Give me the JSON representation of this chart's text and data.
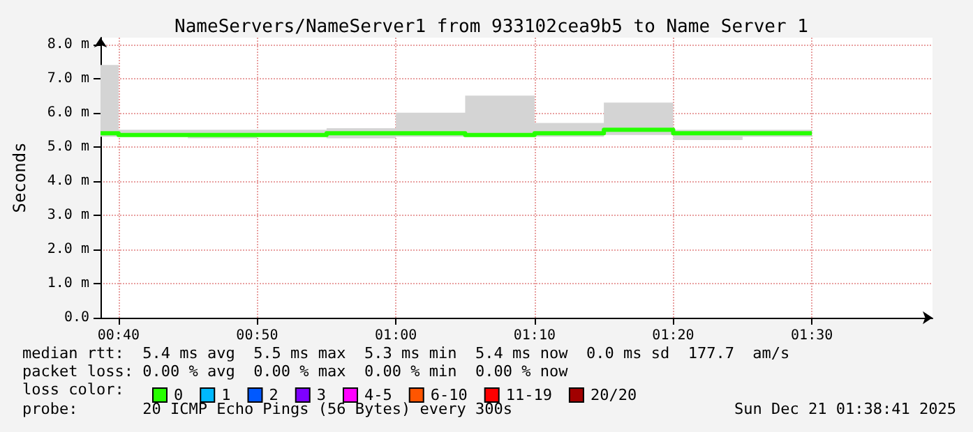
{
  "chart_data": {
    "type": "step",
    "title": "NameServers/NameServer1 from 933102cea9b5 to Name Server 1",
    "ylabel": "Seconds",
    "x": [
      0.645,
      0.6667,
      0.75,
      0.8333,
      0.9167,
      1.0,
      1.0833,
      1.1667,
      1.25,
      1.3333,
      1.4167,
      1.5
    ],
    "xlim": [
      0.645,
      1.645
    ],
    "xticks": [
      {
        "value": 0.6667,
        "label": "00:40"
      },
      {
        "value": 0.8333,
        "label": "00:50"
      },
      {
        "value": 1.0,
        "label": "01:00"
      },
      {
        "value": 1.1667,
        "label": "01:10"
      },
      {
        "value": 1.3333,
        "label": "01:20"
      },
      {
        "value": 1.5,
        "label": "01:30"
      }
    ],
    "ylim": [
      0,
      8.2
    ],
    "yticks": [
      {
        "value": 0,
        "label": "0.0"
      },
      {
        "value": 1,
        "label": "1.0 m"
      },
      {
        "value": 2,
        "label": "2.0 m"
      },
      {
        "value": 3,
        "label": "3.0 m"
      },
      {
        "value": 4,
        "label": "4.0 m"
      },
      {
        "value": 5,
        "label": "5.0 m"
      },
      {
        "value": 6,
        "label": "6.0 m"
      },
      {
        "value": 7,
        "label": "7.0 m"
      },
      {
        "value": 8,
        "label": "8.0 m"
      }
    ],
    "series": [
      {
        "name": "0",
        "color": "#26ff00",
        "values": [
          5.4,
          5.4,
          5.35,
          5.35,
          5.35,
          5.4,
          5.4,
          5.35,
          5.4,
          5.5,
          5.4,
          5.4
        ],
        "lower": [
          5.3,
          5.3,
          5.3,
          5.25,
          5.3,
          5.25,
          5.3,
          5.3,
          5.3,
          5.35,
          5.2,
          5.3
        ],
        "upper": [
          7.4,
          7.4,
          5.5,
          5.5,
          5.5,
          5.55,
          6.0,
          6.5,
          5.7,
          6.3,
          5.5,
          5.5
        ]
      },
      {
        "name": "1",
        "color": "#00b8ff",
        "values": [
          null,
          null,
          null,
          null,
          null,
          null,
          null,
          null,
          null,
          null,
          null,
          null
        ]
      },
      {
        "name": "2",
        "color": "#0059ff",
        "values": [
          null,
          null,
          null,
          null,
          null,
          null,
          null,
          null,
          null,
          null,
          null,
          null
        ]
      },
      {
        "name": "3",
        "color": "#7e00ff",
        "values": [
          null,
          null,
          null,
          null,
          null,
          null,
          null,
          null,
          null,
          null,
          null,
          null
        ]
      },
      {
        "name": "4-5",
        "color": "#ff00ff",
        "values": [
          null,
          null,
          null,
          null,
          null,
          null,
          null,
          null,
          null,
          null,
          null,
          null
        ]
      },
      {
        "name": "6-10",
        "color": "#ff5500",
        "values": [
          null,
          null,
          null,
          null,
          null,
          null,
          null,
          null,
          null,
          null,
          null,
          null
        ]
      },
      {
        "name": "11-19",
        "color": "#ff0000",
        "values": [
          null,
          null,
          null,
          null,
          null,
          null,
          null,
          null,
          null,
          null,
          null,
          null
        ]
      },
      {
        "name": "20/20",
        "color": "#a10000",
        "values": [
          null,
          null,
          null,
          null,
          null,
          null,
          null,
          null,
          null,
          null,
          null,
          null
        ]
      }
    ],
    "legend": "bottom left",
    "grid": true,
    "annotations": [
      "median rtt:  5.4 ms avg  5.5 ms max  5.3 ms min  5.4 ms now  0.0 ms sd  177.7  am/s",
      "packet loss: 0.00 % avg  0.00 % max  0.00 % min  0.00 % now",
      "loss color:",
      "probe:       20 ICMP Echo Pings (56 Bytes) every 300s",
      "Sun Dec 21 01:38:41 2025"
    ]
  }
}
